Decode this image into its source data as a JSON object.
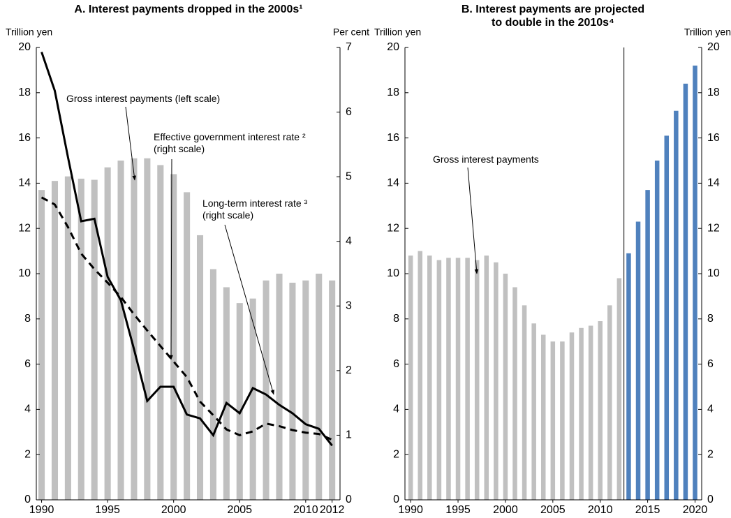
{
  "chart_data": [
    {
      "type": "bar",
      "title": "A. Interest payments dropped in the 2000s¹",
      "ylabel": "Trillion yen",
      "y2label": "Per cent",
      "x": [
        1990,
        1991,
        1992,
        1993,
        1994,
        1995,
        1996,
        1997,
        1998,
        1999,
        2000,
        2001,
        2002,
        2003,
        2004,
        2005,
        2006,
        2007,
        2008,
        2009,
        2010,
        2011,
        2012
      ],
      "xlim": [
        1989.6,
        2012.6
      ],
      "xticks": [
        1990,
        1995,
        2000,
        2005,
        2010,
        2012
      ],
      "ylim": [
        0,
        20
      ],
      "yticks": [
        0,
        2,
        4,
        6,
        8,
        10,
        12,
        14,
        16,
        18,
        20
      ],
      "y2lim": [
        0,
        7
      ],
      "y2ticks": [
        0,
        1,
        2,
        3,
        4,
        5,
        6,
        7
      ],
      "series": [
        {
          "name": "Gross interest payments (left scale)",
          "type": "bar",
          "color": "#c0c0c0",
          "values": [
            13.7,
            14.1,
            14.3,
            14.2,
            14.15,
            14.7,
            15.0,
            15.1,
            15.1,
            14.8,
            14.4,
            13.6,
            11.7,
            10.2,
            9.4,
            8.7,
            8.9,
            9.7,
            10.0,
            9.6,
            9.7,
            10.0,
            9.7
          ]
        },
        {
          "name": "Effective government interest rate ² (right scale)",
          "type": "line",
          "dashed": true,
          "axis": "y2",
          "color": "#000000",
          "values": [
            4.68,
            4.57,
            4.22,
            3.81,
            3.57,
            3.36,
            3.14,
            2.87,
            2.62,
            2.38,
            2.14,
            1.9,
            1.52,
            1.31,
            1.09,
            1.0,
            1.06,
            1.18,
            1.14,
            1.08,
            1.04,
            1.02,
            0.93
          ]
        },
        {
          "name": "Long-term interest rate ³ (right scale)",
          "type": "line",
          "dashed": false,
          "axis": "y2",
          "color": "#000000",
          "values": [
            6.93,
            6.33,
            5.3,
            4.31,
            4.35,
            3.45,
            3.09,
            2.33,
            1.53,
            1.75,
            1.75,
            1.32,
            1.26,
            1.0,
            1.5,
            1.34,
            1.73,
            1.63,
            1.47,
            1.34,
            1.17,
            1.1,
            0.84
          ]
        }
      ]
    },
    {
      "type": "bar",
      "title": [
        "B. Interest payments are projected",
        "to double in the 2010s⁴"
      ],
      "ylabel": "Trillion yen",
      "y2label": "Trillion yen",
      "x": [
        1990,
        1991,
        1992,
        1993,
        1994,
        1995,
        1996,
        1997,
        1998,
        1999,
        2000,
        2001,
        2002,
        2003,
        2004,
        2005,
        2006,
        2007,
        2008,
        2009,
        2010,
        2011,
        2012,
        2013,
        2014,
        2015,
        2016,
        2017,
        2018,
        2019,
        2020
      ],
      "xlim": [
        1989.4,
        2020.7
      ],
      "xticks": [
        1990,
        1995,
        2000,
        2005,
        2010,
        2015,
        2020
      ],
      "ylim": [
        0,
        20
      ],
      "yticks": [
        0,
        2,
        4,
        6,
        8,
        10,
        12,
        14,
        16,
        18,
        20
      ],
      "y2lim": [
        0,
        20
      ],
      "y2ticks": [
        0,
        2,
        4,
        6,
        8,
        10,
        12,
        14,
        16,
        18,
        20
      ],
      "series": [
        {
          "name": "Gross interest payments",
          "type": "bar",
          "values": [
            10.8,
            11.0,
            10.8,
            10.6,
            10.7,
            10.7,
            10.7,
            10.6,
            10.8,
            10.5,
            10.0,
            9.4,
            8.6,
            7.8,
            7.3,
            7.0,
            7.0,
            7.4,
            7.6,
            7.7,
            7.9,
            8.6,
            9.8,
            10.9,
            12.3,
            13.7,
            15.0,
            16.1,
            17.2,
            18.4,
            19.2
          ],
          "colors": [
            "#c0c0c0",
            "#c0c0c0",
            "#c0c0c0",
            "#c0c0c0",
            "#c0c0c0",
            "#c0c0c0",
            "#c0c0c0",
            "#c0c0c0",
            "#c0c0c0",
            "#c0c0c0",
            "#c0c0c0",
            "#c0c0c0",
            "#c0c0c0",
            "#c0c0c0",
            "#c0c0c0",
            "#c0c0c0",
            "#c0c0c0",
            "#c0c0c0",
            "#c0c0c0",
            "#c0c0c0",
            "#c0c0c0",
            "#c0c0c0",
            "#c0c0c0",
            "#4f81bd",
            "#4f81bd",
            "#4f81bd",
            "#4f81bd",
            "#4f81bd",
            "#4f81bd",
            "#4f81bd",
            "#4f81bd"
          ]
        }
      ]
    }
  ]
}
